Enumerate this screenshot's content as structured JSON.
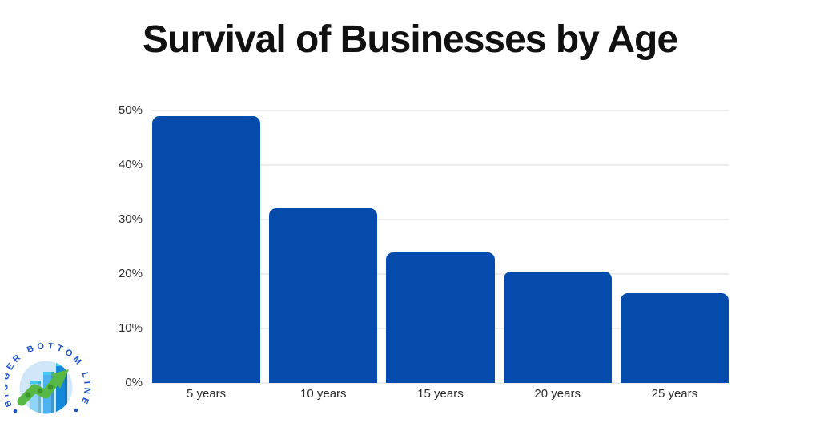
{
  "page": {
    "background": "#ffffff",
    "title": "Survival of Businesses by Age"
  },
  "chart_data": {
    "type": "bar",
    "title": "Survival of Businesses by Age",
    "categories": [
      "5 years",
      "10 years",
      "15 years",
      "20 years",
      "25 years"
    ],
    "values": [
      49,
      32,
      24,
      20.5,
      16.4
    ],
    "value_unit": "%",
    "xlabel": "",
    "ylabel": "",
    "ylim": [
      0,
      50
    ],
    "yticks": [
      0,
      10,
      20,
      30,
      40,
      50
    ],
    "ytick_suffix": "%",
    "grid": true,
    "legend": false,
    "bar_color": "#054bac",
    "gridline_color": "#ececec",
    "tick_label_color": "#2d2d2d",
    "title_color": "#111111"
  },
  "logo": {
    "text": "BIGGER BOTTOM LINE",
    "text_color": "#1d52c8",
    "badge_background": "#cfe7f8",
    "arrow_color": "#57b845",
    "arrow_accent": "#3c9630",
    "bar_colors": [
      "#8ed4f7",
      "#4db2ef",
      "#1488d8"
    ],
    "bar_top_color": "#45c8f2"
  }
}
